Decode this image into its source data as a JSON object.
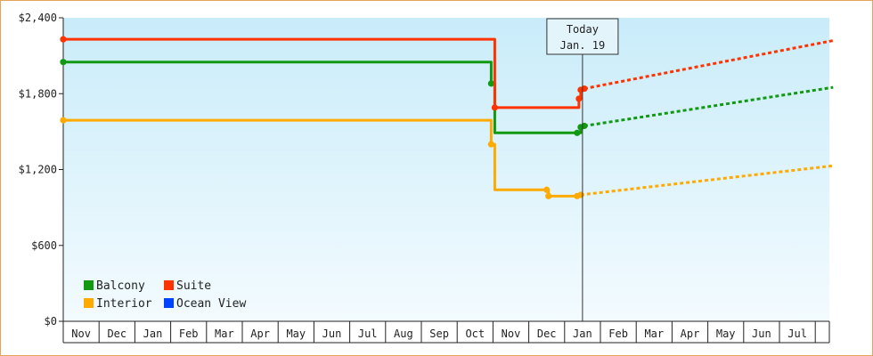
{
  "chart_data": {
    "type": "line",
    "title": "",
    "xlabel": "",
    "ylabel": "",
    "x_ticks": [
      "Nov",
      "Dec",
      "Jan",
      "Feb",
      "Mar",
      "Apr",
      "May",
      "Jun",
      "Jul",
      "Aug",
      "Sep",
      "Oct",
      "Nov",
      "Dec",
      "Jan",
      "Feb",
      "Mar",
      "Apr",
      "May",
      "Jun",
      "Jul"
    ],
    "y_ticks": [
      "$0",
      "$600",
      "$1,200",
      "$1,800",
      "$2,400"
    ],
    "ylim": [
      0,
      2400
    ],
    "grid": false,
    "legend": {
      "placement": "bottom-left"
    },
    "today_marker": {
      "line1": "Today",
      "line2": "Jan. 19",
      "x": 14.5
    },
    "series": [
      {
        "name": "Balcony",
        "color": "#119911",
        "historical": [
          [
            0.0,
            2050
          ],
          [
            11.9,
            2050
          ],
          [
            11.95,
            1880
          ],
          [
            12.05,
            1490
          ],
          [
            14.35,
            1490
          ],
          [
            14.45,
            1535
          ],
          [
            14.55,
            1545
          ]
        ],
        "forecast": [
          [
            14.55,
            1545
          ],
          [
            21.5,
            1850
          ]
        ]
      },
      {
        "name": "Suite",
        "color": "#ff3300",
        "historical": [
          [
            0.0,
            2230
          ],
          [
            11.9,
            2230
          ],
          [
            12.05,
            1690
          ],
          [
            14.35,
            1690
          ],
          [
            14.4,
            1760
          ],
          [
            14.45,
            1830
          ],
          [
            14.55,
            1840
          ]
        ],
        "forecast": [
          [
            14.55,
            1840
          ],
          [
            21.5,
            2220
          ]
        ]
      },
      {
        "name": "Interior",
        "color": "#ffaa00",
        "historical": [
          [
            0.0,
            1590
          ],
          [
            11.9,
            1590
          ],
          [
            11.95,
            1400
          ],
          [
            12.05,
            1040
          ],
          [
            13.5,
            1040
          ],
          [
            13.55,
            990
          ],
          [
            14.35,
            990
          ],
          [
            14.45,
            1000
          ]
        ],
        "forecast": [
          [
            14.45,
            1000
          ],
          [
            21.5,
            1230
          ]
        ]
      },
      {
        "name": "Ocean View",
        "color": "#0044ff",
        "historical": [],
        "forecast": []
      }
    ]
  }
}
